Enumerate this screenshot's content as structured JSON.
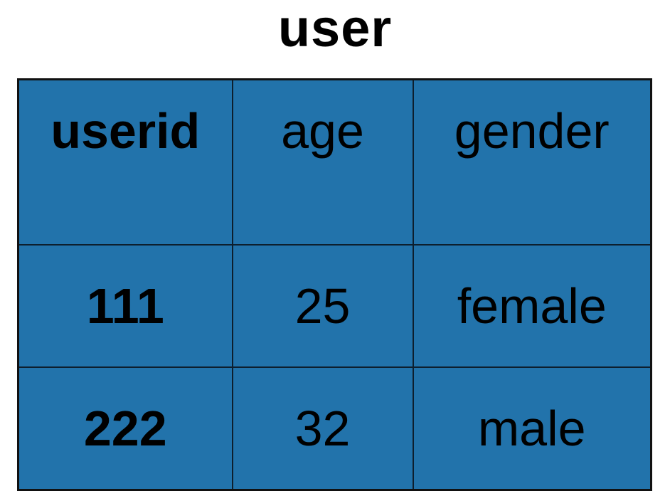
{
  "title": "user",
  "colors": {
    "cell_fill": "#2273ab",
    "border": "#0d1f2e",
    "text": "#000000"
  },
  "columns": [
    "userid",
    "age",
    "gender"
  ],
  "rows": [
    [
      "111",
      "25",
      "female"
    ],
    [
      "222",
      "32",
      "male"
    ]
  ]
}
